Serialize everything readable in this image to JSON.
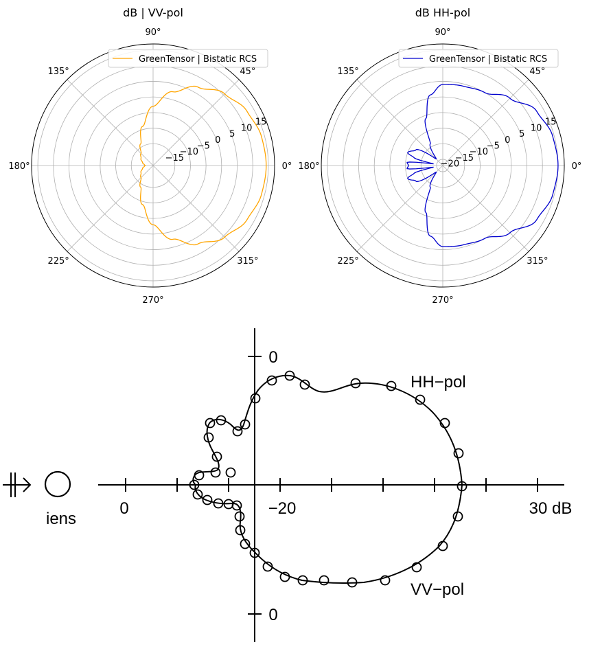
{
  "chart_data": [
    {
      "type": "polar-line",
      "title": "dB | VV-pol",
      "angle_labels": [
        "0°",
        "45°",
        "90°",
        "135°",
        "180°",
        "225°",
        "270°",
        "315°"
      ],
      "radial_ticks": [
        -15,
        -10,
        -5,
        0,
        5,
        10,
        15
      ],
      "rlim": [
        -22,
        17
      ],
      "legend": "top-right",
      "series": [
        {
          "name": "GreenTensor | Bistatic RCS",
          "color": "#ffa500",
          "theta_deg": [
            0,
            15,
            30,
            45,
            60,
            75,
            90,
            105,
            120,
            135,
            150,
            165,
            175,
            180
          ],
          "r_db": [
            14.3,
            14.0,
            12.8,
            10.5,
            7.0,
            2.5,
            -3.0,
            -9.0,
            -14.0,
            -16.5,
            -17.5,
            -18.5,
            -19.2,
            -19.5
          ]
        }
      ]
    },
    {
      "type": "polar-line",
      "title": "dB HH-pol",
      "angle_labels": [
        "0°",
        "45°",
        "90°",
        "135°",
        "180°",
        "225°",
        "270°",
        "315°"
      ],
      "radial_ticks": [
        -20,
        -15,
        -10,
        -5,
        0,
        5,
        10,
        15
      ],
      "rlim": [
        -22,
        17
      ],
      "legend": "top-right",
      "series": [
        {
          "name": "GreenTensor | Bistatic RCS",
          "color": "#0000cd",
          "theta_deg": [
            0,
            15,
            30,
            45,
            60,
            75,
            90,
            100,
            110,
            120,
            135,
            150,
            160,
            165,
            170,
            175,
            180
          ],
          "r_db": [
            15.0,
            14.5,
            12.8,
            8.5,
            5.0,
            4.3,
            4.0,
            1.0,
            -6.0,
            -14.0,
            -19.0,
            -12.0,
            -10.0,
            -12.5,
            -19.0,
            -10.5,
            -11.0
          ]
        }
      ]
    }
  ],
  "reference": {
    "tick_labels": [
      "0",
      "−20",
      "30 dB"
    ],
    "axis_label_top": "0",
    "axis_label_bottom": "0",
    "curve_labels": {
      "hh": "HH−pol",
      "vv": "VV−pol"
    },
    "object_label": "iens"
  }
}
